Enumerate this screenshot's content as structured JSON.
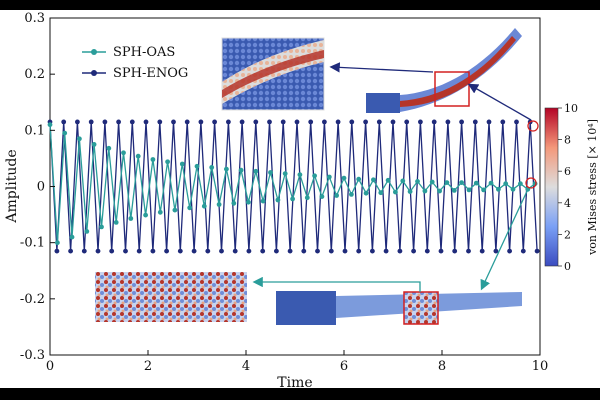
{
  "chart_data": {
    "type": "line",
    "xlabel": "Time",
    "ylabel": "Amplitude",
    "xlim": [
      0,
      10
    ],
    "ylim": [
      -0.3,
      0.3
    ],
    "xticks": [
      "0",
      "2",
      "4",
      "6",
      "8",
      "10"
    ],
    "yticks": [
      "0.3",
      "0.2",
      "0.1",
      "0",
      "-0.1",
      "-0.2",
      "-0.3"
    ],
    "grid": false,
    "legend_position": "top-left",
    "series": [
      {
        "name": "SPH-OAS",
        "color": "#2a9d9a",
        "marker": "circle",
        "amplitude_start": 0.11,
        "amplitude_end": 0.005,
        "period": 0.3,
        "x": [
          0.0,
          0.15,
          0.3,
          0.45,
          0.6,
          0.75,
          0.9,
          1.05,
          1.2,
          1.35,
          1.5,
          1.65,
          1.8,
          1.95,
          2.1,
          2.25,
          2.4,
          2.55,
          2.7,
          2.85,
          3.0,
          3.15,
          3.3,
          3.45,
          3.6,
          3.75,
          3.9,
          4.05,
          4.2,
          4.35,
          4.5,
          4.65,
          4.8,
          4.95,
          5.1,
          5.25,
          5.4,
          5.55,
          5.7,
          5.85,
          6.0,
          6.15,
          6.3,
          6.45,
          6.6,
          6.75,
          6.9,
          7.05,
          7.2,
          7.35,
          7.5,
          7.65,
          7.8,
          7.95,
          8.1,
          8.25,
          8.4,
          8.55,
          8.7,
          8.85,
          9.0,
          9.15,
          9.3,
          9.45,
          9.6,
          9.75,
          9.9
        ],
        "y": [
          0.11,
          -0.1,
          0.095,
          -0.09,
          0.085,
          -0.08,
          0.075,
          -0.072,
          0.068,
          -0.064,
          0.06,
          -0.057,
          0.054,
          -0.051,
          0.048,
          -0.046,
          0.044,
          -0.042,
          0.04,
          -0.038,
          0.036,
          -0.035,
          0.034,
          -0.032,
          0.031,
          -0.03,
          0.029,
          -0.028,
          0.027,
          -0.026,
          0.025,
          -0.024,
          0.023,
          -0.022,
          0.021,
          -0.02,
          0.019,
          -0.018,
          0.017,
          -0.016,
          0.015,
          -0.014,
          0.013,
          -0.012,
          0.012,
          -0.011,
          0.011,
          -0.01,
          0.01,
          -0.009,
          0.009,
          -0.008,
          0.008,
          -0.008,
          0.007,
          -0.007,
          0.007,
          -0.006,
          0.006,
          -0.006,
          0.006,
          -0.005,
          0.005,
          -0.005,
          0.005,
          -0.005,
          0.005
        ]
      },
      {
        "name": "SPH-ENOG",
        "color": "#1f2a7a",
        "marker": "circle",
        "amplitude": 0.115,
        "period": 0.28,
        "x": [
          0.0,
          0.14,
          0.28,
          0.42,
          0.56,
          0.7,
          0.84,
          0.98,
          1.12,
          1.26,
          1.4,
          1.54,
          1.68,
          1.82,
          1.96,
          2.1,
          2.24,
          2.38,
          2.52,
          2.66,
          2.8,
          2.94,
          3.08,
          3.22,
          3.36,
          3.5,
          3.64,
          3.78,
          3.92,
          4.06,
          4.2,
          4.34,
          4.48,
          4.62,
          4.76,
          4.9,
          5.04,
          5.18,
          5.32,
          5.46,
          5.6,
          5.74,
          5.88,
          6.02,
          6.16,
          6.3,
          6.44,
          6.58,
          6.72,
          6.86,
          7.0,
          7.14,
          7.28,
          7.42,
          7.56,
          7.7,
          7.84,
          7.98,
          8.12,
          8.26,
          8.4,
          8.54,
          8.68,
          8.82,
          8.96,
          9.1,
          9.24,
          9.38,
          9.52,
          9.66,
          9.8,
          9.94
        ],
        "y": [
          0.115,
          -0.115,
          0.115,
          -0.115,
          0.115,
          -0.115,
          0.115,
          -0.115,
          0.115,
          -0.115,
          0.115,
          -0.115,
          0.115,
          -0.115,
          0.115,
          -0.115,
          0.115,
          -0.115,
          0.115,
          -0.115,
          0.115,
          -0.115,
          0.115,
          -0.115,
          0.115,
          -0.115,
          0.115,
          -0.115,
          0.115,
          -0.115,
          0.115,
          -0.115,
          0.115,
          -0.115,
          0.115,
          -0.115,
          0.115,
          -0.115,
          0.115,
          -0.115,
          0.115,
          -0.115,
          0.115,
          -0.115,
          0.115,
          -0.115,
          0.115,
          -0.115,
          0.115,
          -0.115,
          0.115,
          -0.115,
          0.115,
          -0.115,
          0.115,
          -0.115,
          0.115,
          -0.115,
          0.115,
          -0.115,
          0.115,
          -0.115,
          0.115,
          -0.115,
          0.115,
          -0.115,
          0.115,
          -0.115,
          0.115,
          -0.115,
          0.115,
          -0.115
        ]
      }
    ],
    "colorbar": {
      "label": "von Mises stress [× 10⁴]",
      "ticks": [
        "10",
        "8",
        "6",
        "4",
        "2",
        "0"
      ],
      "range": [
        0,
        10
      ],
      "colors": [
        "#3b4cc0",
        "#7aa0f5",
        "#dddddd",
        "#f4987a",
        "#b40426"
      ]
    },
    "insets": [
      "upper-zoom-particles",
      "upper-beam-deformed",
      "lower-zoom-particles",
      "lower-beam-deformed"
    ]
  }
}
